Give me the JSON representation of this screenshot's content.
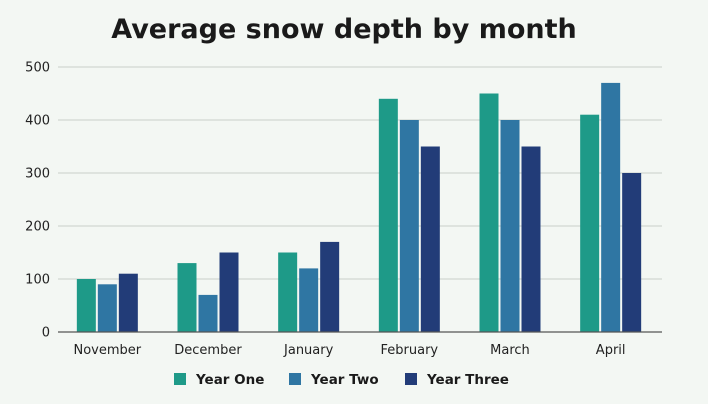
{
  "chart_data": {
    "type": "bar",
    "title": "Average snow depth by month",
    "xlabel": "",
    "ylabel": "",
    "categories": [
      "November",
      "December",
      "January",
      "February",
      "March",
      "April"
    ],
    "series": [
      {
        "name": "Year One",
        "color": "#1e9a88",
        "values": [
          100,
          130,
          150,
          440,
          450,
          410
        ]
      },
      {
        "name": "Year Two",
        "color": "#2f76a3",
        "values": [
          90,
          70,
          120,
          400,
          400,
          470
        ]
      },
      {
        "name": "Year Three",
        "color": "#223c78",
        "values": [
          110,
          150,
          170,
          350,
          350,
          300
        ]
      }
    ],
    "ylim": [
      0,
      500
    ],
    "yticks": [
      "0",
      "100",
      "200",
      "300",
      "400",
      "500"
    ],
    "grid": true,
    "legend_position": "bottom"
  }
}
